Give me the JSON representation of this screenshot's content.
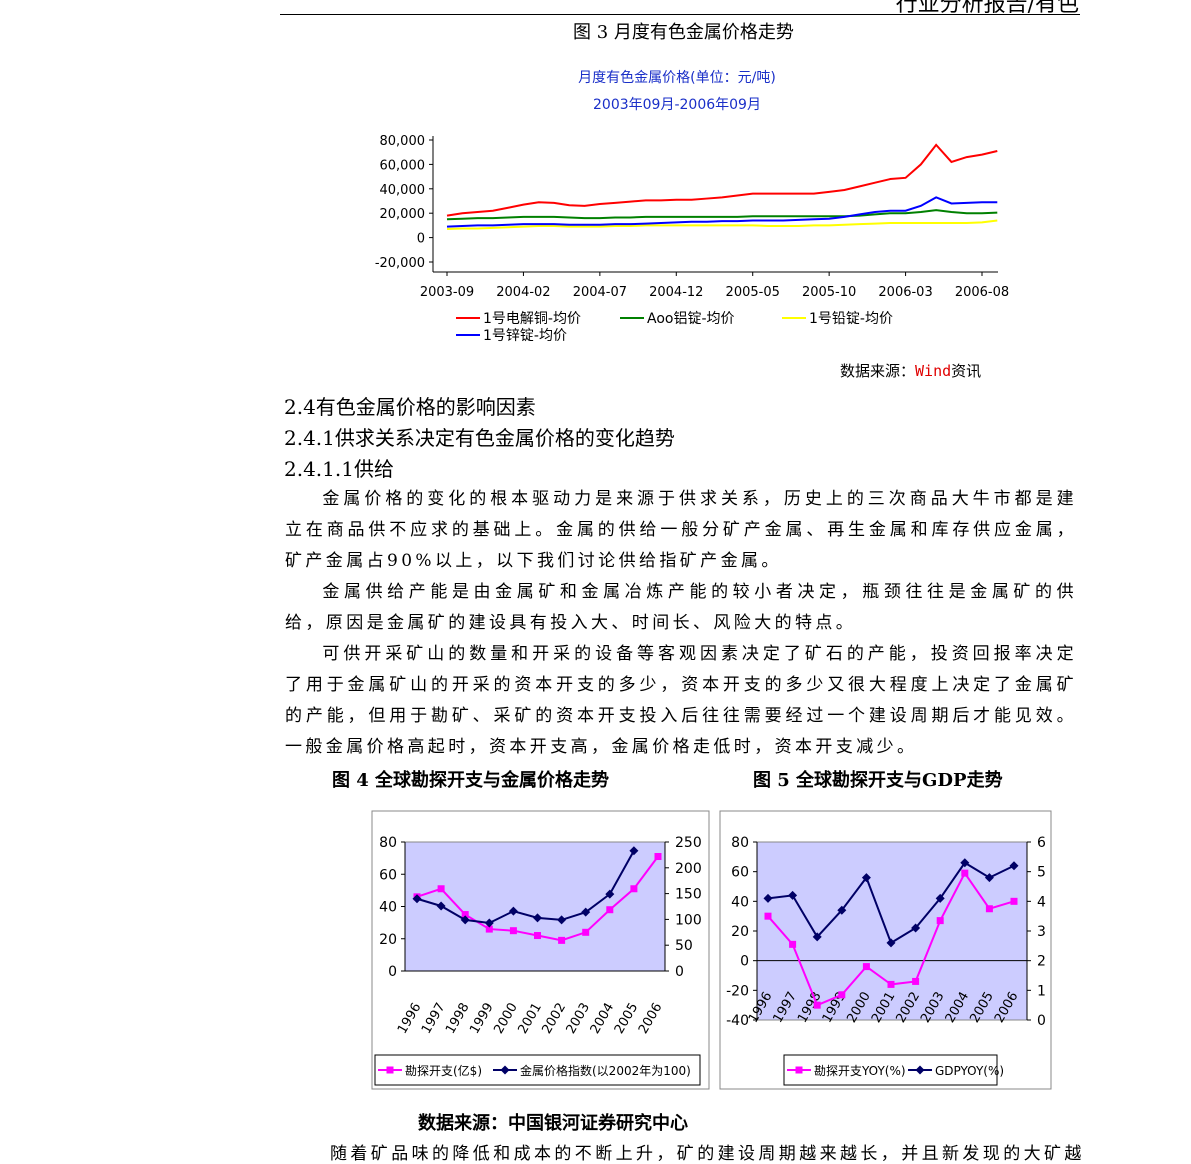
{
  "header": "行业分析报告/有色",
  "figures": [
    {
      "caption": "图 3 月度有色金属价格走势"
    },
    {
      "caption": "图 4 全球勘探开支与金属价格走势"
    },
    {
      "caption": "图 5 全球勘探开支与GDP走势"
    }
  ],
  "source1": {
    "label": "数据来源：",
    "name": "Wind",
    "suffix": "资讯"
  },
  "headings": [
    "2.4有色金属价格的影响因素",
    "2.4.1供求关系决定有色金属价格的变化趋势",
    "2.4.1.1供给"
  ],
  "paragraphs": [
    "金属价格的变化的根本驱动力是来源于供求关系，历史上的三次商品大牛市都是建立在商品供不应求的基础上。金属的供给一般分矿产金属、再生金属和库存供应金属，矿产金属占90%以上，以下我们讨论供给指矿产金属。",
    "金属供给产能是由金属矿和金属冶炼产能的较小者决定，瓶颈往往是金属矿的供给，原因是金属矿的建设具有投入大、时间长、风险大的特点。",
    "可供开采矿山的数量和开采的设备等客观因素决定了矿石的产能，投资回报率决定了用于金属矿山的开采的资本开支的多少，资本开支的多少又很大程度上决定了金属矿的产能，但用于勘矿、采矿的资本开支投入后往往需要经过一个建设周期后才能见效。一般金属价格高起时，资本开支高，金属价格走低时，资本开支减少。"
  ],
  "source2": "数据来源：中国银河证券研究中心",
  "trailing_text": "随着矿品味的降低和成本的不断上升，矿的建设周期越来越长，并且新发现的大矿越",
  "chart_data": [
    {
      "type": "line",
      "title": "月度有色金属价格(单位：元/吨)",
      "subtitle": "2003年09月-2006年09月",
      "categories": [
        "2003-09",
        null,
        null,
        null,
        null,
        "2004-02",
        null,
        null,
        null,
        null,
        "2004-07",
        null,
        null,
        null,
        null,
        "2004-12",
        null,
        null,
        null,
        null,
        "2005-05",
        null,
        null,
        null,
        null,
        "2005-10",
        null,
        null,
        null,
        null,
        "2006-03",
        null,
        null,
        null,
        null,
        "2006-08",
        null
      ],
      "series": [
        {
          "name": "1号电解铜-均价",
          "color": "#ff0000",
          "values": [
            18000,
            20000,
            21000,
            22000,
            24500,
            27000,
            29000,
            28500,
            26500,
            26000,
            27500,
            28500,
            29500,
            30500,
            30500,
            31000,
            31000,
            32000,
            33000,
            34500,
            36000,
            36000,
            36000,
            36000,
            36000,
            37500,
            39000,
            42000,
            45000,
            48000,
            49000,
            60000,
            76000,
            62000,
            66000,
            68000,
            71000
          ]
        },
        {
          "name": "Aoo铝锭-均价",
          "color": "#008000",
          "values": [
            15000,
            15500,
            16000,
            16000,
            16500,
            17000,
            17000,
            17000,
            16500,
            16000,
            16000,
            16500,
            16500,
            17000,
            17000,
            17000,
            17000,
            17000,
            17000,
            17000,
            17500,
            17500,
            17500,
            17500,
            17500,
            17500,
            17500,
            18000,
            19000,
            20000,
            20000,
            21000,
            22500,
            21000,
            20000,
            20000,
            20500
          ]
        },
        {
          "name": "1号铅锭-均价",
          "color": "#ffff00",
          "values": [
            7000,
            7500,
            7500,
            8000,
            8500,
            9000,
            9500,
            9500,
            9000,
            9000,
            9000,
            9500,
            9500,
            10000,
            10000,
            10000,
            10000,
            10000,
            10000,
            10000,
            10000,
            9500,
            9500,
            9500,
            10000,
            10000,
            10500,
            11000,
            11500,
            12000,
            12000,
            12000,
            12000,
            12000,
            12000,
            12500,
            14000
          ]
        },
        {
          "name": "1号锌锭-均价",
          "color": "#0000ff",
          "values": [
            9000,
            9500,
            10000,
            10000,
            10500,
            11000,
            11000,
            11000,
            10500,
            10500,
            10500,
            11000,
            11000,
            11500,
            12000,
            12500,
            13000,
            13000,
            13500,
            13500,
            14000,
            14000,
            14000,
            14500,
            15000,
            15500,
            17000,
            19000,
            21000,
            22000,
            22000,
            26000,
            33000,
            28000,
            28500,
            29000,
            29000
          ]
        }
      ],
      "ylim": [
        -20000,
        80000
      ],
      "yticks": [
        {
          "value": -20000,
          "label": "-20,000"
        },
        0,
        {
          "value": 20000,
          "label": "20,000"
        },
        {
          "value": 40000,
          "label": "40,000"
        },
        {
          "value": 60000,
          "label": "60,000"
        },
        {
          "value": 80000,
          "label": "80,000"
        }
      ],
      "grid": false,
      "legend": "bottom"
    },
    {
      "type": "line",
      "categories": [
        "1996",
        "1997",
        "1998",
        "1999",
        "2000",
        "2001",
        "2002",
        "2003",
        "2004",
        "2005",
        "2006"
      ],
      "series": [
        {
          "name": "勘探开支(亿$)",
          "color": "#ff00ff",
          "marker": "square",
          "values": [
            46,
            51,
            35,
            26,
            25,
            22,
            19,
            24,
            38,
            51,
            71
          ]
        },
        {
          "name": "金属价格指数(以2002年为100)",
          "color": "#000066",
          "marker": "diamond",
          "axis": "y2",
          "values": [
            140,
            126,
            99,
            93,
            116,
            103,
            99,
            114,
            149,
            233,
            null
          ]
        }
      ],
      "ylim": [
        0,
        80
      ],
      "yticks": [
        0,
        20,
        40,
        60,
        80
      ],
      "y2lim": [
        0,
        250
      ],
      "y2ticks": [
        0,
        50,
        100,
        150,
        200,
        250
      ],
      "plot_background": "#ccccff",
      "grid": false,
      "legend": "bottom"
    },
    {
      "type": "line",
      "categories": [
        "1996",
        "1997",
        "1998",
        "1999",
        "2000",
        "2001",
        "2002",
        "2003",
        "2004",
        "2005",
        "2006"
      ],
      "series": [
        {
          "name": "勘探开支YOY(%)",
          "color": "#ff00ff",
          "marker": "square",
          "values": [
            30,
            11,
            -30,
            -23,
            -4,
            -16,
            -14,
            27,
            59,
            35,
            40
          ]
        },
        {
          "name": "GDPYOY(%)",
          "color": "#000066",
          "marker": "diamond",
          "axis": "y2",
          "values": [
            4.1,
            4.2,
            2.8,
            3.7,
            4.8,
            2.6,
            3.1,
            4.1,
            5.3,
            4.8,
            5.2
          ]
        }
      ],
      "ylim": [
        -40,
        80
      ],
      "yticks": [
        -40,
        -20,
        0,
        20,
        40,
        60,
        80
      ],
      "y2lim": [
        0,
        6
      ],
      "y2ticks": [
        0,
        1,
        2,
        3,
        4,
        5,
        6
      ],
      "plot_background": "#ccccff",
      "grid": false,
      "legend": "bottom"
    }
  ]
}
